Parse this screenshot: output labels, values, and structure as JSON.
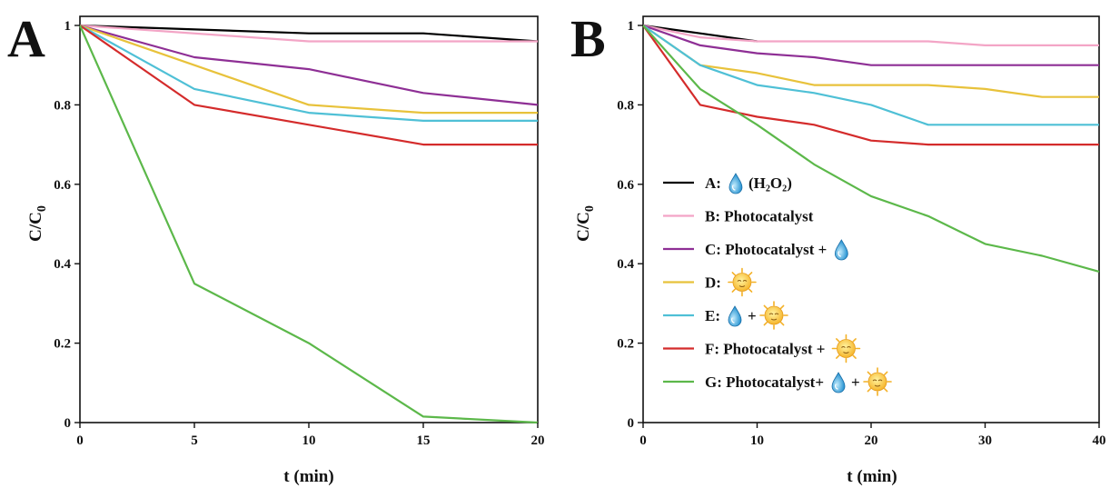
{
  "chart_data": [
    {
      "panel": "A",
      "type": "line",
      "xlabel": "t (min)",
      "ylabel": "C/C0",
      "xlim": [
        0,
        20
      ],
      "ylim": [
        0,
        1
      ],
      "xticks": [
        0,
        5,
        10,
        15,
        20
      ],
      "yticks": [
        0,
        0.2,
        0.4,
        0.6,
        0.8,
        1
      ],
      "xtick_labels": [
        "0",
        "5",
        "10",
        "15",
        "20"
      ],
      "ytick_labels": [
        "0",
        "0.2",
        "0.4",
        "0.6",
        "0.8",
        "1"
      ],
      "series": [
        {
          "color": "#000000",
          "x": [
            0,
            10,
            15,
            20
          ],
          "values": [
            1.0,
            0.98,
            0.98,
            0.96
          ]
        },
        {
          "color": "#f3a5c6",
          "x": [
            0,
            10,
            15,
            20
          ],
          "values": [
            1.0,
            0.96,
            0.96,
            0.96
          ]
        },
        {
          "color": "#8e2f95",
          "x": [
            0,
            5,
            10,
            15,
            20
          ],
          "values": [
            1.0,
            0.92,
            0.89,
            0.83,
            0.8
          ]
        },
        {
          "color": "#e8c23b",
          "x": [
            0,
            5,
            10,
            15,
            20
          ],
          "values": [
            1.0,
            0.9,
            0.8,
            0.78,
            0.78
          ]
        },
        {
          "color": "#4fc0d6",
          "x": [
            0,
            5,
            10,
            15,
            20
          ],
          "values": [
            1.0,
            0.84,
            0.78,
            0.76,
            0.76
          ]
        },
        {
          "color": "#d42b2b",
          "x": [
            0,
            5,
            10,
            15,
            20
          ],
          "values": [
            1.0,
            0.8,
            0.75,
            0.7,
            0.7
          ]
        },
        {
          "color": "#5cb84a",
          "x": [
            0,
            5,
            10,
            15,
            20
          ],
          "values": [
            1.0,
            0.35,
            0.2,
            0.015,
            0.0
          ]
        }
      ]
    },
    {
      "panel": "B",
      "type": "line",
      "xlabel": "t (min)",
      "ylabel": "C/C0",
      "xlim": [
        0,
        40
      ],
      "ylim": [
        0,
        1
      ],
      "xticks": [
        0,
        10,
        20,
        30,
        40
      ],
      "yticks": [
        0,
        0.2,
        0.4,
        0.6,
        0.8,
        1
      ],
      "xtick_labels": [
        "0",
        "10",
        "20",
        "30",
        "40"
      ],
      "ytick_labels": [
        "0",
        "0.2",
        "0.4",
        "0.6",
        "0.8",
        "1"
      ],
      "legend_position": "left",
      "series": [
        {
          "name": "A:",
          "legend_suffix": "(H2O2)",
          "color": "#000000",
          "x": [
            0,
            5,
            10
          ],
          "values": [
            1.0,
            0.98,
            0.96
          ]
        },
        {
          "name": "B: Photocatalyst",
          "color": "#f3a5c6",
          "x": [
            0,
            5,
            10,
            25,
            30,
            40
          ],
          "values": [
            1.0,
            0.97,
            0.96,
            0.96,
            0.95,
            0.95
          ]
        },
        {
          "name": "C: Photocatalyst +",
          "color": "#8e2f95",
          "x": [
            0,
            5,
            10,
            15,
            20,
            40
          ],
          "values": [
            1.0,
            0.95,
            0.93,
            0.92,
            0.9,
            0.9
          ]
        },
        {
          "name": "D:",
          "color": "#e8c23b",
          "x": [
            0,
            5,
            10,
            15,
            25,
            30,
            35,
            40
          ],
          "values": [
            1.0,
            0.9,
            0.88,
            0.85,
            0.85,
            0.84,
            0.82,
            0.82
          ]
        },
        {
          "name": "E:",
          "color": "#4fc0d6",
          "x": [
            0,
            5,
            10,
            15,
            20,
            25,
            40
          ],
          "values": [
            1.0,
            0.9,
            0.85,
            0.83,
            0.8,
            0.75,
            0.75
          ]
        },
        {
          "name": "F: Photocatalyst +",
          "color": "#d42b2b",
          "x": [
            0,
            5,
            10,
            15,
            20,
            25,
            40
          ],
          "values": [
            1.0,
            0.8,
            0.77,
            0.75,
            0.71,
            0.7,
            0.7
          ]
        },
        {
          "name": "G: Photocatalyst+",
          "color": "#5cb84a",
          "x": [
            0,
            5,
            10,
            15,
            20,
            25,
            30,
            35,
            40
          ],
          "values": [
            1.0,
            0.84,
            0.75,
            0.65,
            0.57,
            0.52,
            0.45,
            0.42,
            0.38
          ]
        }
      ]
    }
  ],
  "legend_items": [
    {
      "text": "A:",
      "suffix": "(H₂O₂)",
      "color": "#000000",
      "icons": [
        "water-drop-icon"
      ]
    },
    {
      "text": "B: Photocatalyst",
      "suffix": "",
      "color": "#f3a5c6",
      "icons": []
    },
    {
      "text": "C: Photocatalyst +",
      "suffix": "",
      "color": "#8e2f95",
      "icons": [
        "water-drop-icon"
      ]
    },
    {
      "text": "D:",
      "suffix": "",
      "color": "#e8c23b",
      "icons": [
        "sun-icon"
      ]
    },
    {
      "text": "E:",
      "suffix": "",
      "color": "#4fc0d6",
      "icons": [
        "water-drop-icon",
        "+",
        "sun-icon"
      ]
    },
    {
      "text": "F: Photocatalyst +",
      "suffix": "",
      "color": "#d42b2b",
      "icons": [
        "sun-icon"
      ]
    },
    {
      "text": "G: Photocatalyst+",
      "suffix": "",
      "color": "#5cb84a",
      "icons": [
        "water-drop-icon",
        "+",
        "sun-icon"
      ]
    }
  ],
  "panel_letters": [
    "A",
    "B"
  ],
  "ylabel_main": "C/C",
  "ylabel_sub": "0"
}
